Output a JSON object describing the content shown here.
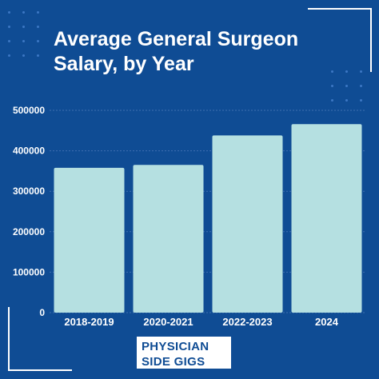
{
  "title": "Average General Surgeon Salary, by Year",
  "brand": {
    "line1": "PHYSICIAN",
    "line2": "SIDE GIGS"
  },
  "colors": {
    "background": "#0f4c94",
    "bar": "#b5e0e1",
    "text": "#ffffff",
    "grid": "#3f6fb0"
  },
  "chart_data": {
    "type": "bar",
    "categories": [
      "2018-2019",
      "2020-2021",
      "2022-2023",
      "2024"
    ],
    "values": [
      358000,
      365000,
      438000,
      466000
    ],
    "ylim": [
      0,
      500000
    ],
    "yticks": [
      0,
      100000,
      200000,
      300000,
      400000,
      500000
    ],
    "ytick_labels": [
      "0",
      "100000",
      "200000",
      "300000",
      "400000",
      "500000"
    ],
    "xlabel": "",
    "ylabel": "",
    "grid": true,
    "legend": false
  }
}
